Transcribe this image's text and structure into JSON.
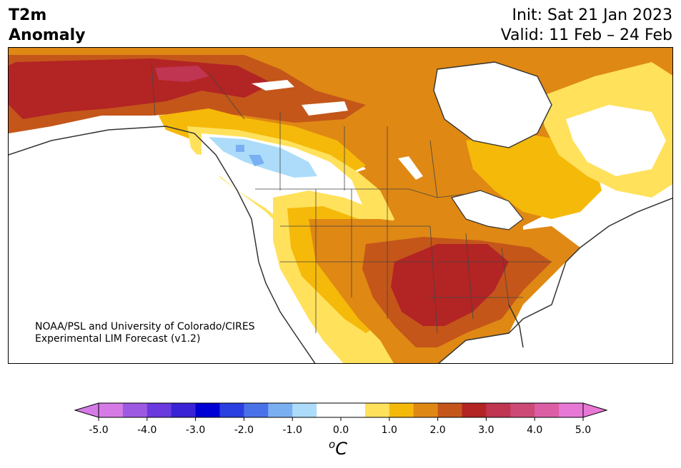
{
  "header": {
    "title_line1": "T2m",
    "title_line2": "Anomaly",
    "init_text": "Init: Sat 21 Jan 2023",
    "valid_text": "Valid: 11 Feb – 24 Feb"
  },
  "map": {
    "region": "North America",
    "credit_line1": "NOAA/PSL and University of Colorado/CIRES",
    "credit_line2": "Experimental LIM Forecast (v1.2)",
    "anomaly_regions": [
      {
        "name": "Alaska and northwest Canada",
        "level": 3.0
      },
      {
        "name": "Southern Plains and Lower Mississippi Valley",
        "level": 3.0
      },
      {
        "name": "Central and eastern US",
        "level": 2.0
      },
      {
        "name": "Canadian Prairies and Hudson Bay",
        "level": 1.5
      },
      {
        "name": "Northern Rockies and northern Great Plains",
        "level": 0.0
      },
      {
        "name": "British Columbia interior",
        "level": -1.0
      }
    ]
  },
  "colorbar": {
    "unit_symbol": "o",
    "unit_letter": "C",
    "ticks": [
      "-5.0",
      "-4.0",
      "-3.0",
      "-2.0",
      "-1.0",
      "0.0",
      "1.0",
      "2.0",
      "3.0",
      "4.0",
      "5.0"
    ],
    "colors": [
      "#d67be6",
      "#9e59e3",
      "#6a3ade",
      "#3a23d6",
      "#0000d4",
      "#2a3fe0",
      "#4a72e8",
      "#7ab0f2",
      "#acdcfa",
      "#ffffff",
      "#ffffff",
      "#ffe15c",
      "#f5b90a",
      "#df8814",
      "#c4561a",
      "#b32424",
      "#bf3552",
      "#cd4a77",
      "#dc5fa6",
      "#e878d6"
    ],
    "extend_low_color": "#d67be6",
    "extend_high_color": "#e878d6"
  }
}
